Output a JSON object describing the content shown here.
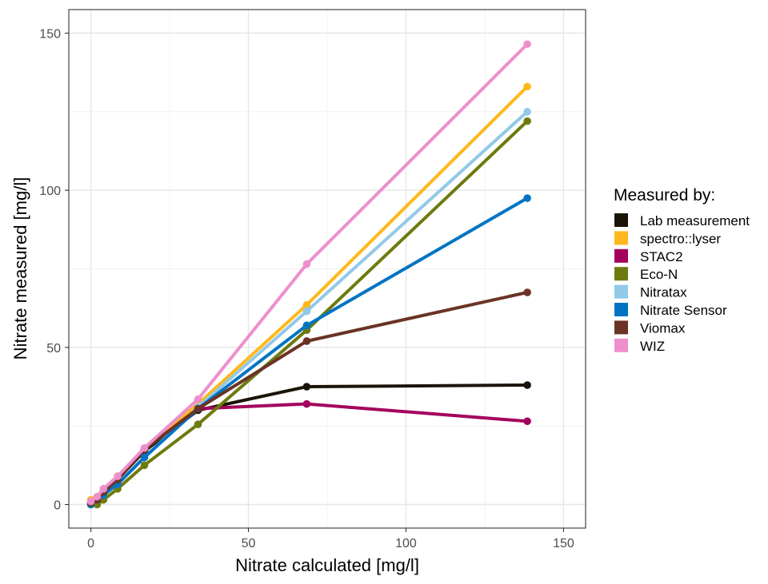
{
  "chart_data": {
    "type": "line",
    "xlabel": "Nitrate calculated [mg/l]",
    "ylabel": "Nitrate measured [mg/l]",
    "xlim": [
      -7,
      157
    ],
    "ylim": [
      -7.5,
      157.5
    ],
    "xticks": [
      0,
      50,
      100,
      150
    ],
    "yticks": [
      0,
      50,
      100,
      150
    ],
    "xtick_labels": [
      "0",
      "50",
      "100",
      "150"
    ],
    "ytick_labels": [
      "0",
      "50",
      "100",
      "150"
    ],
    "grid": true,
    "legend_position": "right",
    "legend_title": "Measured by:",
    "series": [
      {
        "name": "Lab measurement",
        "color": "#1a1408",
        "x": [
          0,
          2,
          4,
          8.5,
          17,
          34,
          68.5,
          138.5
        ],
        "y": [
          0.5,
          1.5,
          4,
          8,
          17,
          30,
          37.5,
          38
        ]
      },
      {
        "name": "spectro::lyser",
        "color": "#ffb81c",
        "x": [
          0,
          2,
          4,
          8.5,
          17,
          34,
          68.5,
          138.5
        ],
        "y": [
          1.5,
          2.5,
          5,
          9,
          17.5,
          32,
          63.5,
          133
        ]
      },
      {
        "name": "STAC2",
        "color": "#a4005d",
        "x": [
          0,
          2,
          4,
          8.5,
          17,
          34,
          68.5,
          138.5
        ],
        "y": [
          0.5,
          2,
          4,
          8,
          17.5,
          30.5,
          32,
          26.5
        ]
      },
      {
        "name": "Eco-N",
        "color": "#6f7a0e",
        "x": [
          0,
          2,
          4,
          8.5,
          17,
          34,
          68.5,
          138.5
        ],
        "y": [
          0,
          0,
          1.5,
          5,
          12.5,
          25.5,
          55.5,
          122
        ]
      },
      {
        "name": "Nitratax",
        "color": "#92c9e8",
        "x": [
          0,
          2,
          4,
          8.5,
          17,
          34,
          68.5,
          138.5
        ],
        "y": [
          0,
          1.5,
          3,
          6.5,
          15,
          31,
          61.5,
          125
        ]
      },
      {
        "name": "Nitrate Sensor",
        "color": "#0074c2",
        "x": [
          0,
          2,
          4,
          8.5,
          17,
          34,
          68.5,
          138.5
        ],
        "y": [
          0,
          1.5,
          3,
          6.5,
          15,
          30.5,
          57,
          97.5
        ]
      },
      {
        "name": "Viomax",
        "color": "#6a3324",
        "x": [
          0,
          2,
          4,
          8.5,
          17,
          34,
          68.5,
          138.5
        ],
        "y": [
          0.5,
          1.5,
          4,
          8,
          17.5,
          30.5,
          52,
          67.5
        ]
      },
      {
        "name": "WIZ",
        "color": "#ee8fcd",
        "x": [
          0,
          2,
          4,
          8.5,
          17,
          34,
          68.5,
          138.5
        ],
        "y": [
          1,
          2.5,
          5,
          9,
          18,
          33.5,
          76.5,
          146.5
        ]
      }
    ]
  }
}
